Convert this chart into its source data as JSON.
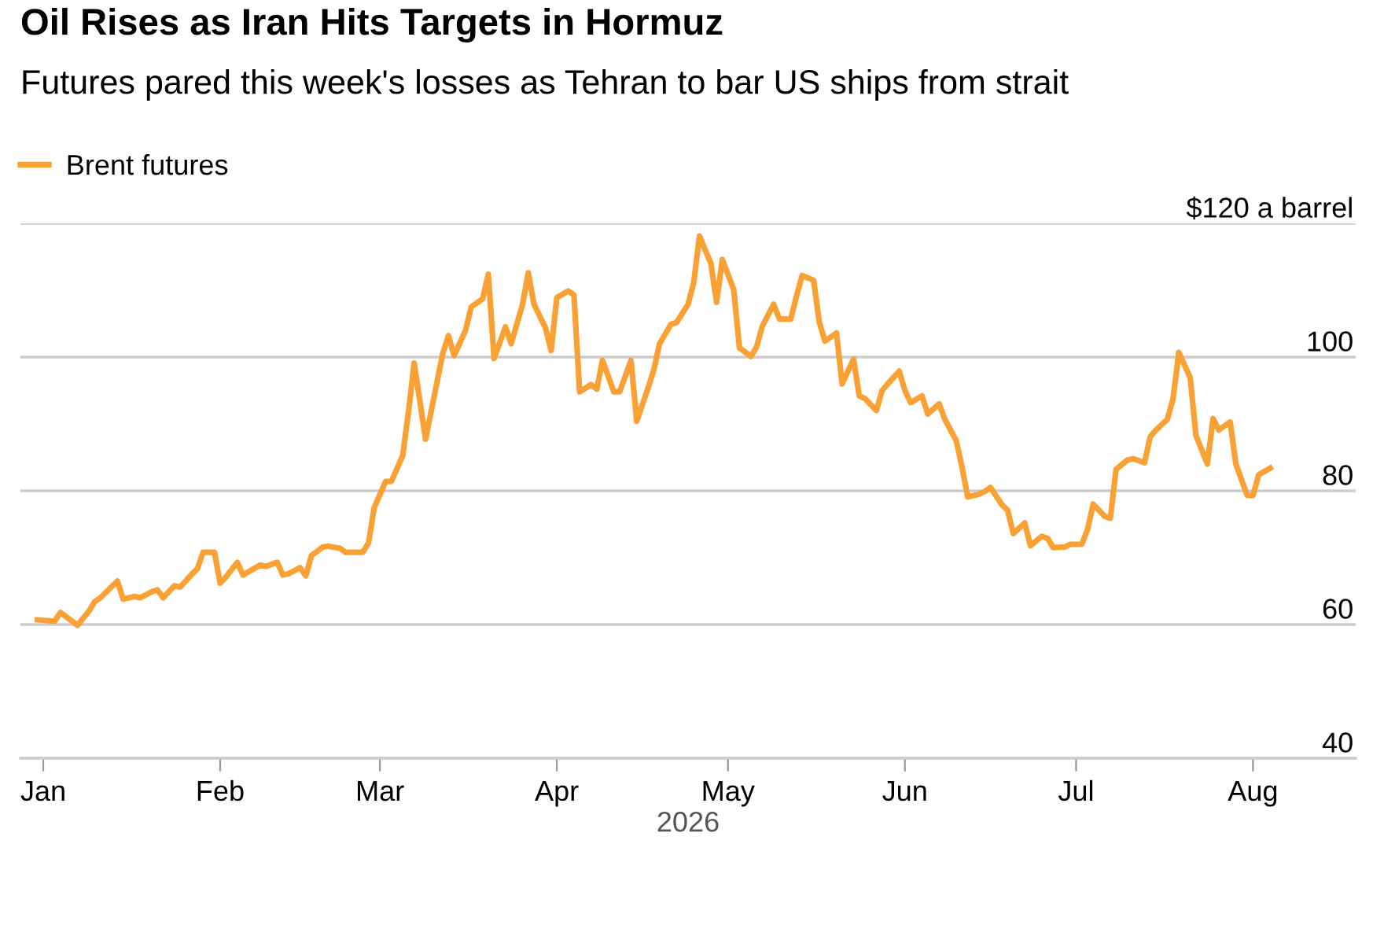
{
  "chart_data": {
    "type": "line",
    "title": "Oil Rises as Iran Hits Targets in Hormuz",
    "subtitle": "Futures pared this week's losses as Tehran to bar US ships from strait",
    "xlabel": "2026",
    "x": [
      "2025-12-31",
      "2026-01-03",
      "2026-01-04",
      "2026-01-07",
      "2026-01-09",
      "2026-01-10",
      "2026-01-11",
      "2026-01-14",
      "2026-01-15",
      "2026-01-17",
      "2026-01-18",
      "2026-01-20",
      "2026-01-21",
      "2026-01-22",
      "2026-01-24",
      "2026-01-25",
      "2026-01-27",
      "2026-01-28",
      "2026-01-29",
      "2026-01-31",
      "2026-02-01",
      "2026-02-02",
      "2026-02-04",
      "2026-02-05",
      "2026-02-06",
      "2026-02-08",
      "2026-02-09",
      "2026-02-11",
      "2026-02-12",
      "2026-02-13",
      "2026-02-15",
      "2026-02-16",
      "2026-02-17",
      "2026-02-19",
      "2026-02-20",
      "2026-02-22",
      "2026-02-23",
      "2026-02-26",
      "2026-02-27",
      "2026-02-28",
      "2026-03-02",
      "2026-03-03",
      "2026-03-05",
      "2026-03-06",
      "2026-03-07",
      "2026-03-09",
      "2026-03-10",
      "2026-03-12",
      "2026-03-13",
      "2026-03-14",
      "2026-03-16",
      "2026-03-17",
      "2026-03-19",
      "2026-03-20",
      "2026-03-21",
      "2026-03-23",
      "2026-03-24",
      "2026-03-26",
      "2026-03-27",
      "2026-03-28",
      "2026-03-30",
      "2026-03-31",
      "2026-04-01",
      "2026-04-03",
      "2026-04-04",
      "2026-04-05",
      "2026-04-07",
      "2026-04-08",
      "2026-04-09",
      "2026-04-11",
      "2026-04-12",
      "2026-04-14",
      "2026-04-15",
      "2026-04-17",
      "2026-04-18",
      "2026-04-19",
      "2026-04-21",
      "2026-04-22",
      "2026-04-24",
      "2026-04-25",
      "2026-04-26",
      "2026-04-28",
      "2026-04-29",
      "2026-04-30",
      "2026-05-02",
      "2026-05-03",
      "2026-05-05",
      "2026-05-06",
      "2026-05-07",
      "2026-05-09",
      "2026-05-10",
      "2026-05-12",
      "2026-05-13",
      "2026-05-14",
      "2026-05-16",
      "2026-05-17",
      "2026-05-18",
      "2026-05-20",
      "2026-05-21",
      "2026-05-23",
      "2026-05-24",
      "2026-05-25",
      "2026-05-27",
      "2026-05-28",
      "2026-05-29",
      "2026-05-31",
      "2026-06-01",
      "2026-06-02",
      "2026-06-04",
      "2026-06-05",
      "2026-06-07",
      "2026-06-08",
      "2026-06-10",
      "2026-06-11",
      "2026-06-12",
      "2026-06-14",
      "2026-06-15",
      "2026-06-16",
      "2026-06-18",
      "2026-06-19",
      "2026-06-20",
      "2026-06-22",
      "2026-06-23",
      "2026-06-25",
      "2026-06-26",
      "2026-06-27",
      "2026-06-29",
      "2026-06-30",
      "2026-07-02",
      "2026-07-03",
      "2026-07-04",
      "2026-07-06",
      "2026-07-07",
      "2026-07-08",
      "2026-07-10",
      "2026-07-11",
      "2026-07-13",
      "2026-07-14",
      "2026-07-15",
      "2026-07-17",
      "2026-07-18",
      "2026-07-19",
      "2026-07-21",
      "2026-07-22",
      "2026-07-24",
      "2026-07-25",
      "2026-07-26",
      "2026-07-28",
      "2026-07-29",
      "2026-07-31",
      "2026-08-01",
      "2026-08-02",
      "2026-08-04"
    ],
    "series": [
      {
        "name": "Brent futures",
        "color": "#f9a134",
        "values": [
          60.7,
          60.5,
          61.8,
          59.9,
          62.0,
          63.4,
          64.0,
          66.5,
          63.8,
          64.2,
          64.0,
          64.9,
          65.2,
          64.0,
          65.8,
          65.6,
          67.5,
          68.3,
          70.8,
          70.8,
          66.2,
          67.1,
          69.3,
          67.4,
          67.9,
          68.9,
          68.7,
          69.3,
          67.4,
          67.6,
          68.5,
          67.3,
          70.3,
          71.6,
          71.7,
          71.4,
          70.8,
          70.8,
          72.2,
          77.5,
          81.4,
          81.4,
          85.3,
          91.8,
          99.1,
          87.7,
          92.0,
          100.5,
          103.2,
          100.2,
          104.0,
          107.5,
          108.7,
          112.4,
          99.8,
          104.5,
          102.0,
          107.9,
          112.6,
          107.9,
          104.4,
          101.0,
          108.9,
          109.9,
          109.3,
          94.8,
          95.9,
          95.2,
          99.5,
          94.8,
          94.8,
          99.5,
          90.4,
          95.4,
          98.1,
          102.0,
          104.9,
          105.2,
          107.9,
          111.2,
          118.1,
          114.0,
          108.2,
          114.6,
          110.1,
          101.4,
          100.1,
          101.5,
          104.6,
          107.9,
          105.7,
          105.7,
          109.1,
          112.2,
          111.5,
          105.2,
          102.4,
          103.6,
          96.0,
          99.7,
          94.2,
          93.8,
          92.0,
          95.0,
          96.0,
          97.9,
          95.0,
          93.2,
          94.2,
          91.5,
          93.0,
          90.7,
          87.5,
          83.6,
          79.1,
          79.5,
          79.9,
          80.5,
          77.9,
          77.1,
          73.6,
          75.2,
          71.8,
          73.2,
          72.9,
          71.5,
          71.6,
          72.0,
          72.0,
          74.2,
          78.0,
          76.2,
          75.9,
          83.2,
          84.6,
          84.8,
          84.2,
          88.1,
          89.1,
          90.7,
          93.8,
          100.7,
          96.9,
          88.3,
          84.0,
          90.8,
          89.1,
          90.3,
          84.0,
          79.3,
          79.3,
          82.4,
          83.4
        ]
      }
    ],
    "xlim": [
      "2025-12-28",
      "2026-08-19"
    ],
    "xticks": [
      {
        "value": "2026-01-01",
        "label": "Jan"
      },
      {
        "value": "2026-02-01",
        "label": "Feb"
      },
      {
        "value": "2026-03-01",
        "label": "Mar"
      },
      {
        "value": "2026-04-01",
        "label": "Apr"
      },
      {
        "value": "2026-05-01",
        "label": "May"
      },
      {
        "value": "2026-06-01",
        "label": "Jun"
      },
      {
        "value": "2026-07-01",
        "label": "Jul"
      },
      {
        "value": "2026-08-01",
        "label": "Aug"
      }
    ],
    "ylim": [
      40,
      120
    ],
    "yticks": [
      {
        "value": 120,
        "label": "$120 a barrel"
      },
      100,
      80,
      60,
      40
    ],
    "grid": "y",
    "legend": "top left",
    "marker": "none",
    "line_style": "solid"
  }
}
